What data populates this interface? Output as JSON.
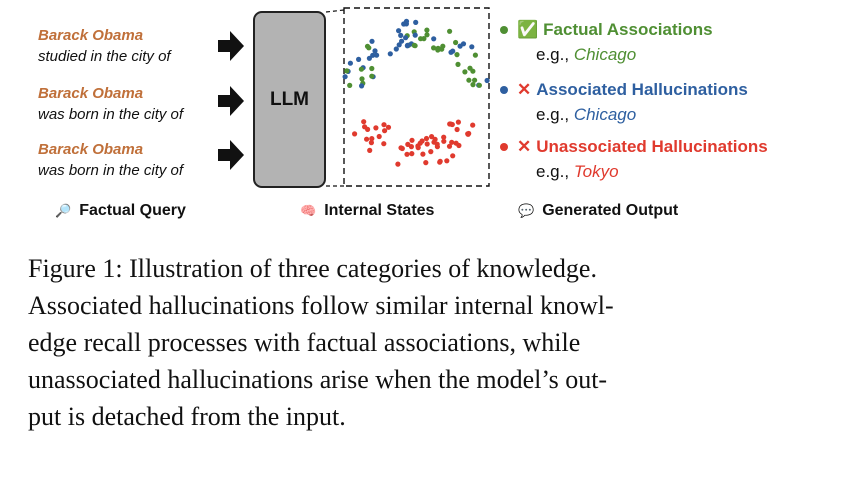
{
  "queries": [
    {
      "subject": "Barack Obama",
      "rest": "studied in the city of"
    },
    {
      "subject": "Barack Obama",
      "rest": "was born in the city of"
    },
    {
      "subject": "Barack Obama",
      "rest": "was born in the city of"
    }
  ],
  "llm_label": "LLM",
  "outputs": [
    {
      "mark": "✅",
      "title": "Factual Associations",
      "eg_prefix": "e.g., ",
      "eg_value": "Chicago",
      "color": "#4f8f33"
    },
    {
      "mark": "✕",
      "title": "Associated Hallucinations",
      "eg_prefix": "e.g., ",
      "eg_value": "Chicago",
      "color": "#2e5fa0"
    },
    {
      "mark": "✕",
      "title": "Unassociated Hallucinations",
      "eg_prefix": "e.g., ",
      "eg_value": "Tokyo",
      "color": "#e03a2e"
    }
  ],
  "labels": {
    "query_icon": "magnifier-icon",
    "query": "Factual Query",
    "states_icon": "brain-icon",
    "states": "Internal States",
    "output_icon": "speech-bubble-icon",
    "output": "Generated Output"
  },
  "colors": {
    "subject": "#c0703a",
    "green": "#4f8f33",
    "blue": "#2e5fa0",
    "red": "#e03a2e",
    "llm_box": "#b3b3b3"
  },
  "caption_lines": [
    "Figure 1: Illustration of three categories of knowledge.",
    "Associated hallucinations follow similar internal knowl-",
    "edge recall processes with factual associations, while",
    "unassociated hallucinations arise when the model’s out-",
    "put is detached from the input."
  ]
}
